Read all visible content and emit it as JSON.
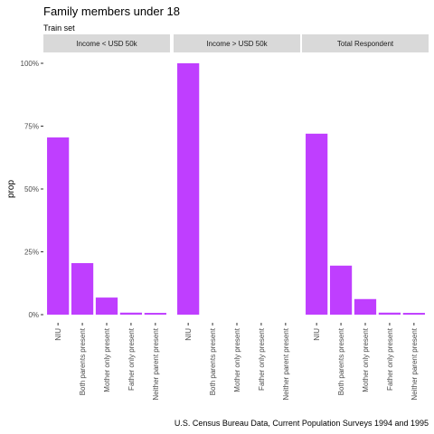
{
  "chart_data": {
    "type": "bar",
    "title": "Family members under 18",
    "subtitle": "Train set",
    "caption": "U.S. Census Bureau Data, Current Population Surveys 1994 and 1995",
    "xlabel": "",
    "ylabel": "prop",
    "ylim": [
      0,
      1
    ],
    "yticks": [
      0,
      0.25,
      0.5,
      0.75,
      1.0
    ],
    "ytick_labels": [
      "0%",
      "25%",
      "50%",
      "75%",
      "100%"
    ],
    "grid": false,
    "legend": "none",
    "bar_color": "#BF3EFF",
    "categories": [
      "NIU",
      "Both parents present",
      "Mother only present",
      "Father only present",
      "Neither parent present"
    ],
    "facets": [
      {
        "label": "Income < USD 50k",
        "values": [
          0.705,
          0.205,
          0.068,
          0.008,
          0.007
        ]
      },
      {
        "label": "Income > USD 50k",
        "values": [
          1.0,
          0.0,
          0.0,
          0.0,
          0.0
        ]
      },
      {
        "label": "Total Respondent",
        "values": [
          0.72,
          0.195,
          0.062,
          0.008,
          0.007
        ]
      }
    ]
  },
  "colors": {
    "bar": "#BF3EFF",
    "strip_bg": "#D9D9D9",
    "tick": "#333333"
  }
}
